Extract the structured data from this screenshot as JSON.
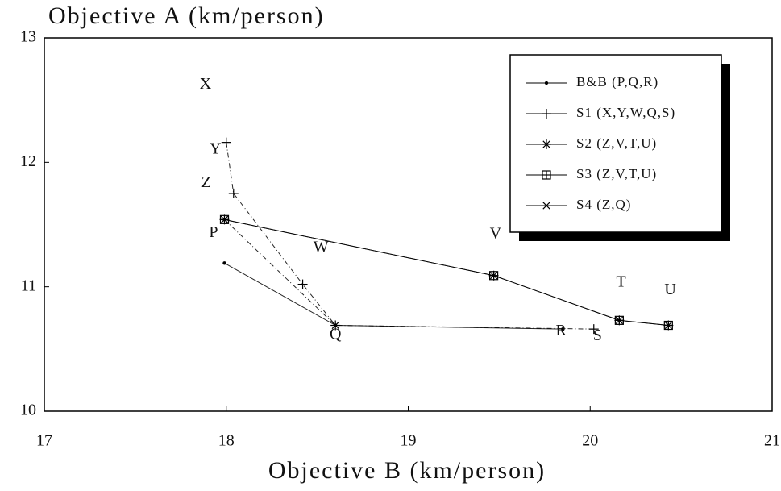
{
  "chart_data": {
    "type": "line",
    "y_label": "Objective A (km/person)",
    "x_label": "Objective B (km/person)",
    "xlim": [
      17,
      21
    ],
    "xticks": [
      17,
      18,
      19,
      20,
      21
    ],
    "ylim": [
      10,
      13
    ],
    "yticks": [
      10,
      11,
      12,
      13
    ],
    "legend": "upper right",
    "color": "#000000",
    "series": [
      {
        "name": "B&B (P,Q,R)",
        "marker": "dot",
        "dashed": false,
        "x": [
          17.99,
          18.6,
          19.85
        ],
        "values": [
          11.19,
          10.69,
          10.66
        ]
      },
      {
        "name": "S1 (X,Y,W,Q,S)",
        "marker": "plus",
        "dashed": true,
        "x": [
          18.0,
          18.04,
          18.42,
          18.6,
          20.02
        ],
        "values": [
          12.16,
          11.75,
          11.02,
          10.69,
          10.66
        ]
      },
      {
        "name": "S2 (Z,V,T,U)",
        "marker": "star",
        "dashed": false,
        "x": [
          17.99,
          19.47,
          20.16,
          20.43
        ],
        "values": [
          11.54,
          11.09,
          10.73,
          10.69
        ]
      },
      {
        "name": "S3 (Z,V,T,U)",
        "marker": "square",
        "dashed": false,
        "x": [
          17.99,
          19.47,
          20.16,
          20.43
        ],
        "values": [
          11.54,
          11.09,
          10.73,
          10.69
        ]
      },
      {
        "name": "S4 (Z,Q)",
        "marker": "x",
        "dashed": true,
        "x": [
          17.99,
          18.6
        ],
        "values": [
          11.54,
          10.69
        ]
      }
    ],
    "annotations": [
      {
        "text": "X",
        "x": 17.886,
        "y": 12.62
      },
      {
        "text": "Y",
        "x": 17.94,
        "y": 12.1
      },
      {
        "text": "Z",
        "x": 17.89,
        "y": 11.83
      },
      {
        "text": "P",
        "x": 17.93,
        "y": 11.43
      },
      {
        "text": "W",
        "x": 18.52,
        "y": 11.31
      },
      {
        "text": "Q",
        "x": 18.6,
        "y": 10.61
      },
      {
        "text": "R",
        "x": 19.84,
        "y": 10.64
      },
      {
        "text": "S",
        "x": 20.04,
        "y": 10.6
      },
      {
        "text": "V",
        "x": 19.48,
        "y": 11.42
      },
      {
        "text": "T",
        "x": 20.17,
        "y": 11.03
      },
      {
        "text": "U",
        "x": 20.44,
        "y": 10.97
      }
    ]
  }
}
